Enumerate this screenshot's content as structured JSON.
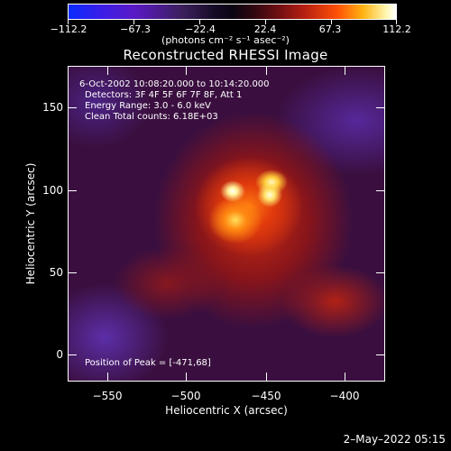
{
  "colorbar": {
    "labels": [
      "−112.2",
      "−67.3",
      "−22.4",
      "22.4",
      "67.3",
      "112.2"
    ],
    "units": "(photons cm⁻² s⁻¹ asec⁻²)"
  },
  "title": "Reconstructed RHESSI Image",
  "info": {
    "time": "6-Oct-2002 10:08:20.000 to 10:14:20.000",
    "detectors": "Detectors: 3F 4F 5F 6F 7F 8F, Att 1",
    "energy": "Energy Range: 3.0 - 6.0 keV",
    "clean": "Clean     Total counts: 6.18E+03",
    "peak": "Position of Peak = [-471,68]"
  },
  "axes": {
    "x_title": "Heliocentric X (arcsec)",
    "y_title": "Heliocentric Y (arcsec)",
    "x_ticks": [
      "−550",
      "−500",
      "−450",
      "−400"
    ],
    "y_ticks": [
      "150",
      "100",
      "50",
      "0"
    ]
  },
  "footer": {
    "date": "2–May–2022 05:15"
  }
}
